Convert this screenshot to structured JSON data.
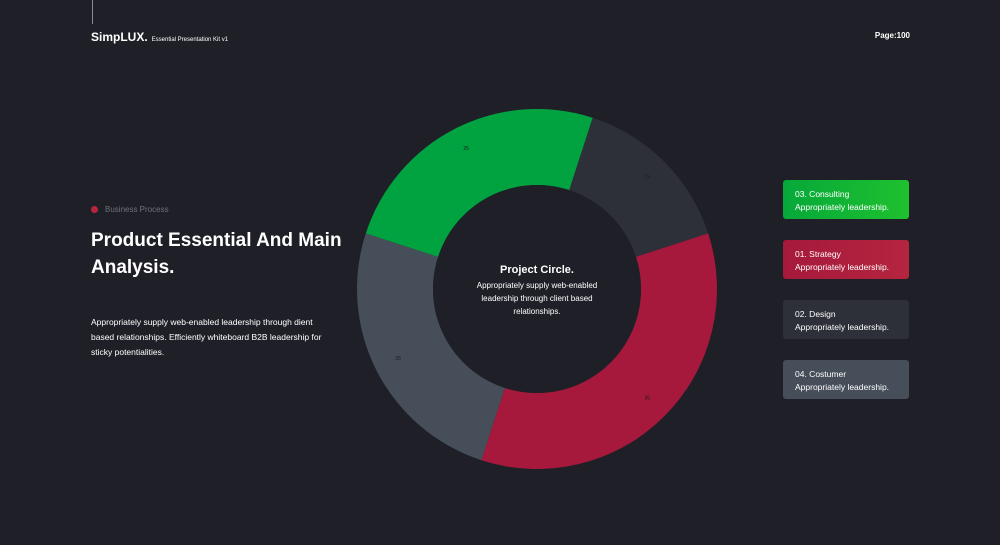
{
  "header": {
    "brand_name": "SimpLUX.",
    "brand_subtitle": "Essential Presentation Kit v1",
    "page": "Page:100"
  },
  "left": {
    "tag": "Business Process",
    "headline": "Product Essential And Main Analysis.",
    "description": "Appropriately supply web-enabled leadership through dient based relationships. Efficiently whiteboard B2B leadership for sticky potentialities."
  },
  "center": {
    "title": "Project Circle.",
    "body": "Appropriately supply web-enabled leadership through client based relationships."
  },
  "legend": [
    {
      "label": "03. Consulting",
      "sub": "Appropriately leadership.",
      "color": "#1fc12f"
    },
    {
      "label": "01. Strategy",
      "sub": "Appropriately leadership.",
      "color": "#b5253f"
    },
    {
      "label": "02. Design",
      "sub": "Appropriately leadership.",
      "color": "#2e3039"
    },
    {
      "label": "04. Costumer",
      "sub": "Appropriately leadership.",
      "color": "#454e59"
    }
  ],
  "chart_data": {
    "type": "pie",
    "donut": true,
    "series": [
      {
        "value": 15,
        "label": "15",
        "color": "#2e3039"
      },
      {
        "value": 35,
        "label": "35",
        "color": "#a6193c"
      },
      {
        "value": 25,
        "label": "25",
        "color": "#454e59"
      },
      {
        "value": 25,
        "label": "25",
        "color": "#00a33f"
      }
    ]
  }
}
